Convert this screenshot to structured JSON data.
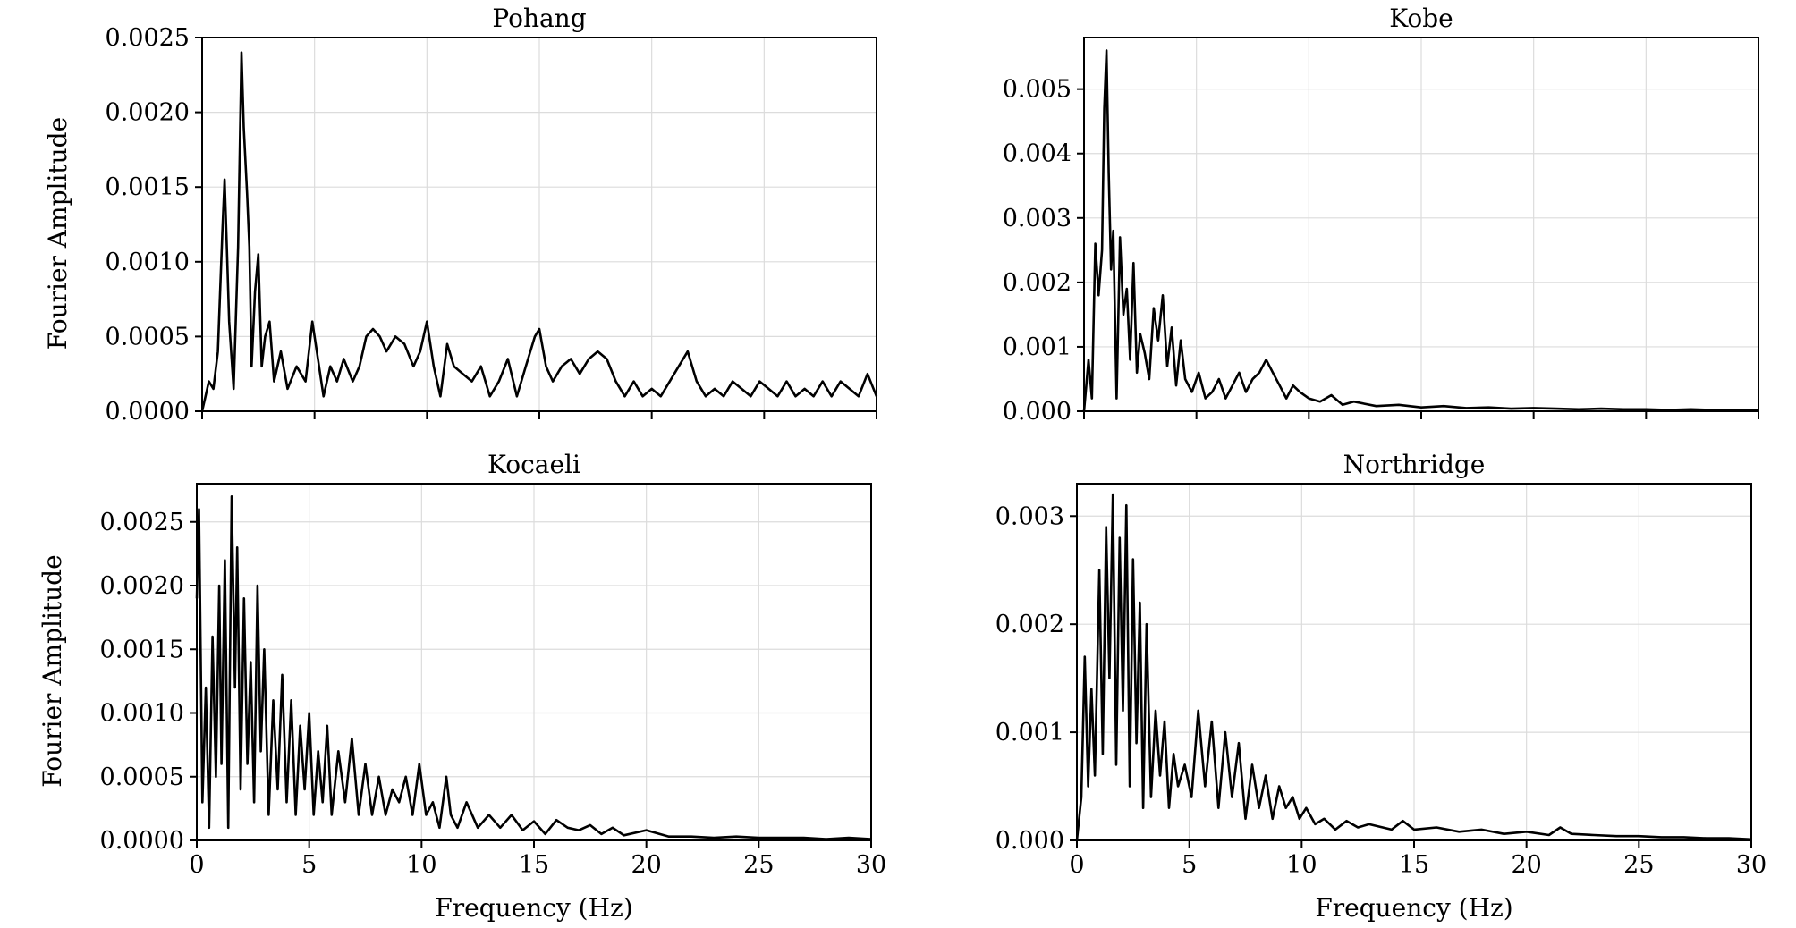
{
  "chart_data": [
    {
      "type": "line",
      "title": "Pohang",
      "xlabel": "",
      "ylabel": "Fourier Amplitude",
      "xlim": [
        0,
        30
      ],
      "ylim": [
        0,
        0.0025
      ],
      "xticks": [
        0,
        5,
        10,
        15,
        20,
        25,
        30
      ],
      "xticklabels": [],
      "yticks": [
        "0.0000",
        "0.0005",
        "0.0010",
        "0.0015",
        "0.0020",
        "0.0025"
      ],
      "grid": true,
      "x": [
        0,
        0.3,
        0.5,
        0.7,
        0.9,
        1.0,
        1.1,
        1.2,
        1.4,
        1.6,
        1.75,
        1.85,
        2.0,
        2.1,
        2.2,
        2.35,
        2.5,
        2.65,
        2.8,
        3.0,
        3.2,
        3.5,
        3.8,
        4.2,
        4.6,
        4.9,
        5.1,
        5.4,
        5.7,
        6.0,
        6.3,
        6.7,
        7.0,
        7.3,
        7.6,
        7.9,
        8.2,
        8.6,
        9.0,
        9.4,
        9.7,
        10.0,
        10.3,
        10.6,
        10.9,
        11.2,
        11.6,
        12.0,
        12.4,
        12.8,
        13.2,
        13.6,
        14.0,
        14.4,
        14.8,
        15.0,
        15.3,
        15.6,
        16.0,
        16.4,
        16.8,
        17.2,
        17.6,
        18.0,
        18.4,
        18.8,
        19.2,
        19.6,
        20.0,
        20.4,
        20.8,
        21.2,
        21.6,
        22.0,
        22.4,
        22.8,
        23.2,
        23.6,
        24.0,
        24.4,
        24.8,
        25.2,
        25.6,
        26.0,
        26.4,
        26.8,
        27.2,
        27.6,
        28.0,
        28.4,
        28.8,
        29.2,
        29.6,
        30.0
      ],
      "y": [
        0.0,
        0.0002,
        0.00015,
        0.0004,
        0.0012,
        0.00155,
        0.0011,
        0.0006,
        0.00015,
        0.0011,
        0.0024,
        0.0019,
        0.00145,
        0.0011,
        0.0003,
        0.0008,
        0.00105,
        0.0003,
        0.0005,
        0.0006,
        0.0002,
        0.0004,
        0.00015,
        0.0003,
        0.0002,
        0.0006,
        0.0004,
        0.0001,
        0.0003,
        0.0002,
        0.00035,
        0.0002,
        0.0003,
        0.0005,
        0.00055,
        0.0005,
        0.0004,
        0.0005,
        0.00045,
        0.0003,
        0.0004,
        0.0006,
        0.0003,
        0.0001,
        0.00045,
        0.0003,
        0.00025,
        0.0002,
        0.0003,
        0.0001,
        0.0002,
        0.00035,
        0.0001,
        0.0003,
        0.0005,
        0.00055,
        0.0003,
        0.0002,
        0.0003,
        0.00035,
        0.00025,
        0.00035,
        0.0004,
        0.00035,
        0.0002,
        0.0001,
        0.0002,
        0.0001,
        0.00015,
        0.0001,
        0.0002,
        0.0003,
        0.0004,
        0.0002,
        0.0001,
        0.00015,
        0.0001,
        0.0002,
        0.00015,
        0.0001,
        0.0002,
        0.00015,
        0.0001,
        0.0002,
        0.0001,
        0.00015,
        0.0001,
        0.0002,
        0.0001,
        0.0002,
        0.00015,
        0.0001,
        0.00025,
        0.0001
      ]
    },
    {
      "type": "line",
      "title": "Kobe",
      "xlabel": "",
      "ylabel": "",
      "xlim": [
        0,
        30
      ],
      "ylim": [
        0,
        0.0058
      ],
      "xticks": [
        0,
        5,
        10,
        15,
        20,
        25,
        30
      ],
      "xticklabels": [],
      "yticks": [
        "0.000",
        "0.001",
        "0.002",
        "0.003",
        "0.004",
        "0.005"
      ],
      "grid": true,
      "x": [
        0,
        0.2,
        0.35,
        0.5,
        0.65,
        0.8,
        0.9,
        1.0,
        1.1,
        1.2,
        1.3,
        1.45,
        1.6,
        1.75,
        1.9,
        2.05,
        2.2,
        2.35,
        2.5,
        2.7,
        2.9,
        3.1,
        3.3,
        3.5,
        3.7,
        3.9,
        4.1,
        4.3,
        4.5,
        4.8,
        5.1,
        5.4,
        5.7,
        6.0,
        6.3,
        6.6,
        6.9,
        7.2,
        7.5,
        7.8,
        8.1,
        8.4,
        8.7,
        9.0,
        9.3,
        9.6,
        10.0,
        10.5,
        11.0,
        11.5,
        12.0,
        13.0,
        14.0,
        15.0,
        16.0,
        17.0,
        18.0,
        19.0,
        20.0,
        21.0,
        22.0,
        23.0,
        24.0,
        25.0,
        26.0,
        27.0,
        28.0,
        29.0,
        30.0
      ],
      "y": [
        0.0,
        0.0008,
        0.0002,
        0.0026,
        0.0018,
        0.0025,
        0.0047,
        0.0056,
        0.0037,
        0.0022,
        0.0028,
        0.0002,
        0.0027,
        0.0015,
        0.0019,
        0.0008,
        0.0023,
        0.0006,
        0.0012,
        0.0009,
        0.0005,
        0.0016,
        0.0011,
        0.0018,
        0.0007,
        0.0013,
        0.0004,
        0.0011,
        0.0005,
        0.0003,
        0.0006,
        0.0002,
        0.0003,
        0.0005,
        0.0002,
        0.0004,
        0.0006,
        0.0003,
        0.0005,
        0.0006,
        0.0008,
        0.0006,
        0.0004,
        0.0002,
        0.0004,
        0.0003,
        0.0002,
        0.00015,
        0.00025,
        0.0001,
        0.00015,
        8e-05,
        0.0001,
        6e-05,
        8e-05,
        5e-05,
        6e-05,
        4e-05,
        5e-05,
        4e-05,
        3e-05,
        4e-05,
        3e-05,
        3e-05,
        2e-05,
        3e-05,
        2e-05,
        2e-05,
        2e-05
      ]
    },
    {
      "type": "line",
      "title": "Kocaeli",
      "xlabel": "Frequency (Hz)",
      "ylabel": "Fourier Amplitude",
      "xlim": [
        0,
        30
      ],
      "ylim": [
        0,
        0.0028
      ],
      "xticks": [
        0,
        5,
        10,
        15,
        20,
        25,
        30
      ],
      "xticklabels": [
        "0",
        "5",
        "10",
        "15",
        "20",
        "25",
        "30"
      ],
      "yticks": [
        "0.0000",
        "0.0005",
        "0.0010",
        "0.0015",
        "0.0020",
        "0.0025"
      ],
      "grid": true,
      "x": [
        0,
        0.1,
        0.25,
        0.4,
        0.55,
        0.7,
        0.85,
        1.0,
        1.1,
        1.25,
        1.4,
        1.55,
        1.7,
        1.8,
        1.95,
        2.1,
        2.25,
        2.4,
        2.55,
        2.7,
        2.85,
        3.0,
        3.2,
        3.4,
        3.6,
        3.8,
        4.0,
        4.2,
        4.4,
        4.6,
        4.8,
        5.0,
        5.2,
        5.4,
        5.6,
        5.8,
        6.0,
        6.3,
        6.6,
        6.9,
        7.2,
        7.5,
        7.8,
        8.1,
        8.4,
        8.7,
        9.0,
        9.3,
        9.6,
        9.9,
        10.2,
        10.5,
        10.8,
        11.1,
        11.3,
        11.6,
        12.0,
        12.5,
        13.0,
        13.5,
        14.0,
        14.5,
        15.0,
        15.5,
        16.0,
        16.5,
        17.0,
        17.5,
        18.0,
        18.5,
        19.0,
        20.0,
        21.0,
        22.0,
        23.0,
        24.0,
        25.0,
        26.0,
        27.0,
        28.0,
        29.0,
        30.0
      ],
      "y": [
        0.0019,
        0.0026,
        0.0003,
        0.0012,
        0.0001,
        0.0016,
        0.0005,
        0.002,
        0.0006,
        0.0022,
        0.0001,
        0.0027,
        0.0012,
        0.0023,
        0.0004,
        0.0019,
        0.0006,
        0.0014,
        0.0003,
        0.002,
        0.0007,
        0.0015,
        0.0002,
        0.0011,
        0.0004,
        0.0013,
        0.0003,
        0.0011,
        0.0002,
        0.0009,
        0.0004,
        0.001,
        0.0002,
        0.0007,
        0.0003,
        0.0009,
        0.0002,
        0.0007,
        0.0003,
        0.0008,
        0.0002,
        0.0006,
        0.0002,
        0.0005,
        0.0002,
        0.0004,
        0.0003,
        0.0005,
        0.0002,
        0.0006,
        0.0002,
        0.0003,
        0.0001,
        0.0005,
        0.0002,
        0.0001,
        0.0003,
        0.0001,
        0.0002,
        0.0001,
        0.0002,
        8e-05,
        0.00015,
        5e-05,
        0.00016,
        0.0001,
        8e-05,
        0.00012,
        5e-05,
        0.0001,
        4e-05,
        8e-05,
        3e-05,
        3e-05,
        2e-05,
        3e-05,
        2e-05,
        2e-05,
        2e-05,
        1e-05,
        2e-05,
        1e-05
      ]
    },
    {
      "type": "line",
      "title": "Northridge",
      "xlabel": "Frequency (Hz)",
      "ylabel": "",
      "xlim": [
        0,
        30
      ],
      "ylim": [
        0,
        0.0033
      ],
      "xticks": [
        0,
        5,
        10,
        15,
        20,
        25,
        30
      ],
      "xticklabels": [
        "0",
        "5",
        "10",
        "15",
        "20",
        "25",
        "30"
      ],
      "yticks": [
        "0.000",
        "0.001",
        "0.002",
        "0.003"
      ],
      "grid": true,
      "x": [
        0,
        0.2,
        0.35,
        0.5,
        0.65,
        0.8,
        1.0,
        1.15,
        1.3,
        1.45,
        1.6,
        1.75,
        1.9,
        2.05,
        2.2,
        2.35,
        2.5,
        2.65,
        2.8,
        2.95,
        3.1,
        3.3,
        3.5,
        3.7,
        3.9,
        4.1,
        4.3,
        4.5,
        4.8,
        5.1,
        5.4,
        5.7,
        6.0,
        6.3,
        6.6,
        6.9,
        7.2,
        7.5,
        7.8,
        8.1,
        8.4,
        8.7,
        9.0,
        9.3,
        9.6,
        9.9,
        10.2,
        10.6,
        11.0,
        11.5,
        12.0,
        12.5,
        13.0,
        14.0,
        14.5,
        15.0,
        16.0,
        17.0,
        18.0,
        19.0,
        20.0,
        21.0,
        21.5,
        22.0,
        23.0,
        24.0,
        25.0,
        26.0,
        27.0,
        28.0,
        29.0,
        30.0
      ],
      "y": [
        0.0,
        0.0004,
        0.0017,
        0.0005,
        0.0014,
        0.0006,
        0.0025,
        0.0008,
        0.0029,
        0.0015,
        0.0032,
        0.0007,
        0.0028,
        0.0012,
        0.0031,
        0.0005,
        0.0026,
        0.0009,
        0.0022,
        0.0003,
        0.002,
        0.0004,
        0.0012,
        0.0006,
        0.0011,
        0.0003,
        0.0008,
        0.0005,
        0.0007,
        0.0004,
        0.0012,
        0.0005,
        0.0011,
        0.0003,
        0.001,
        0.0004,
        0.0009,
        0.0002,
        0.0007,
        0.0003,
        0.0006,
        0.0002,
        0.0005,
        0.0003,
        0.0004,
        0.0002,
        0.0003,
        0.00015,
        0.0002,
        0.0001,
        0.00018,
        0.00012,
        0.00015,
        0.0001,
        0.00018,
        0.0001,
        0.00012,
        8e-05,
        0.0001,
        6e-05,
        8e-05,
        5e-05,
        0.00012,
        6e-05,
        5e-05,
        4e-05,
        4e-05,
        3e-05,
        3e-05,
        2e-05,
        2e-05,
        1e-05
      ]
    }
  ]
}
